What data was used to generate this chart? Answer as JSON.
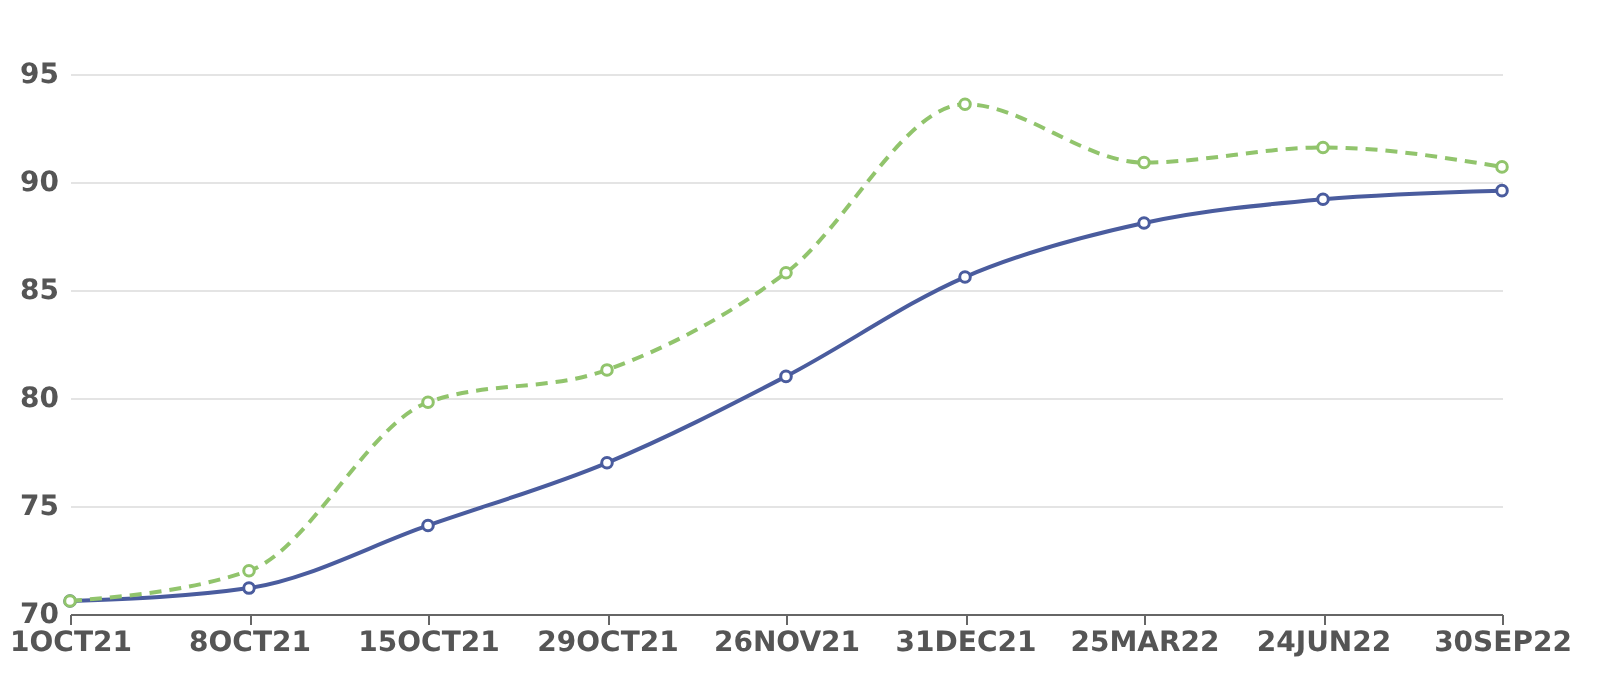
{
  "chart_data": {
    "type": "line",
    "categories": [
      "1OCT21",
      "8OCT21",
      "15OCT21",
      "29OCT21",
      "26NOV21",
      "31DEC21",
      "25MAR22",
      "24JUN22",
      "30SEP22"
    ],
    "series": [
      {
        "color": "#4a5c9e",
        "values": [
          70.6,
          71.2,
          74.1,
          77.0,
          81.0,
          85.6,
          88.1,
          89.2,
          89.6
        ],
        "line_style": "solid"
      },
      {
        "color": "#91c46c",
        "values": [
          70.6,
          72.0,
          79.8,
          81.3,
          85.8,
          93.6,
          90.9,
          91.6,
          90.7
        ],
        "line_style": "dashed"
      }
    ],
    "ylim": [
      70,
      95
    ],
    "yticks": [
      70,
      75,
      80,
      85,
      90,
      95
    ],
    "grid": "y",
    "marker": "circle"
  }
}
